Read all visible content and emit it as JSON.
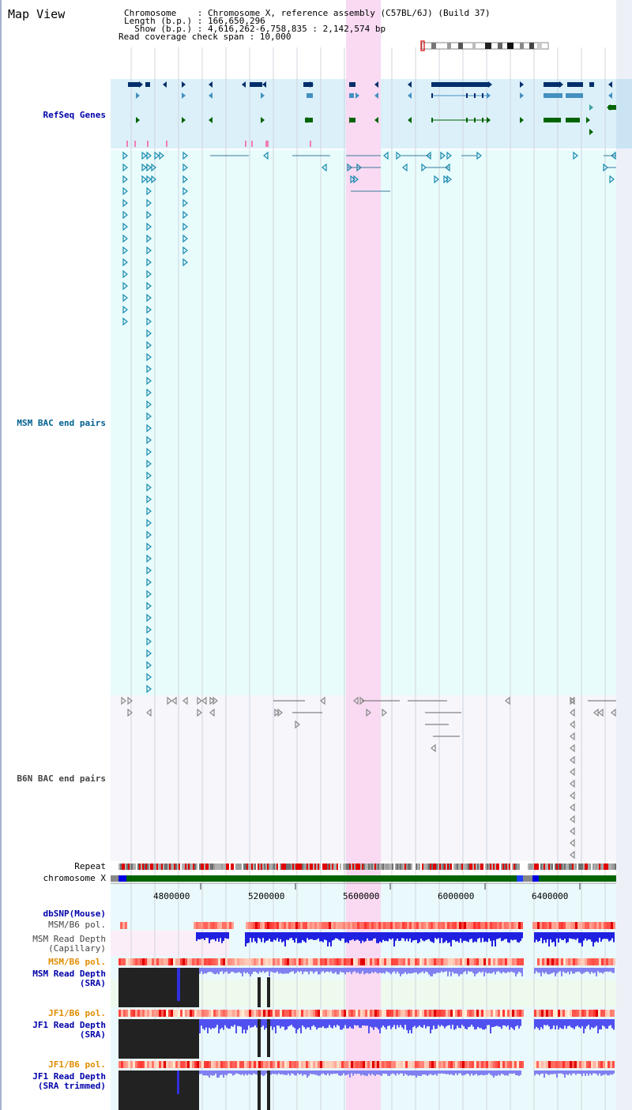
{
  "view_title": "Map View",
  "info": {
    "chromosome_line": "Chromosome    : Chromosome X, reference assembly (C57BL/6J) (Build 37)",
    "length_line": "Length (b.p.) : 166,650,296",
    "show_line": "  Show (b.p.) : 4,616,262-6,758,835 : 2,142,574 bp",
    "span_line": "Read coverage check span : 10,000"
  },
  "tracks": {
    "refseq": "RefSeq Genes",
    "msm_bac": "MSM BAC end pairs",
    "b6n_bac": "B6N BAC end pairs",
    "repeat": "Repeat",
    "chromosome": "chromosome X",
    "dbsnp": "dbSNP(Mouse)",
    "msm_b6_pol_1": "MSM/B6 pol.",
    "msm_depth_cap_1": "MSM Read Depth",
    "msm_depth_cap_2": "(Capillary)",
    "msm_b6_pol_2": "MSM/B6 pol.",
    "msm_depth_sra_1": "MSM Read Depth",
    "msm_depth_sra_2": "(SRA)",
    "jf1_b6_pol_1": "JF1/B6 pol.",
    "jf1_depth_sra_1": "JF1 Read Depth",
    "jf1_depth_sra_2": "(SRA)",
    "jf1_b6_pol_2": "JF1/B6 pol.",
    "jf1_depth_trim_1": "JF1 Read Depth",
    "jf1_depth_trim_2": "(SRA trimmed)"
  },
  "axis_ticks": [
    "4800000",
    "5200000",
    "5600000",
    "6000000",
    "6400000"
  ],
  "colors": {
    "refseq_bg": "#dcf0fa",
    "msm_bg": "#e8fcfc",
    "b6n_bg": "#f6f6fb",
    "highlight": "#f9d9f2",
    "gene_dark": "#002f6b",
    "gene_mid": "#4490c0",
    "gene_green": "#006400",
    "msm_label": "#006090",
    "refseq_label": "#0000aa",
    "orange_label": "#e08c00",
    "depth_blue": "#2020e0",
    "chrom_green": "#006400"
  }
}
